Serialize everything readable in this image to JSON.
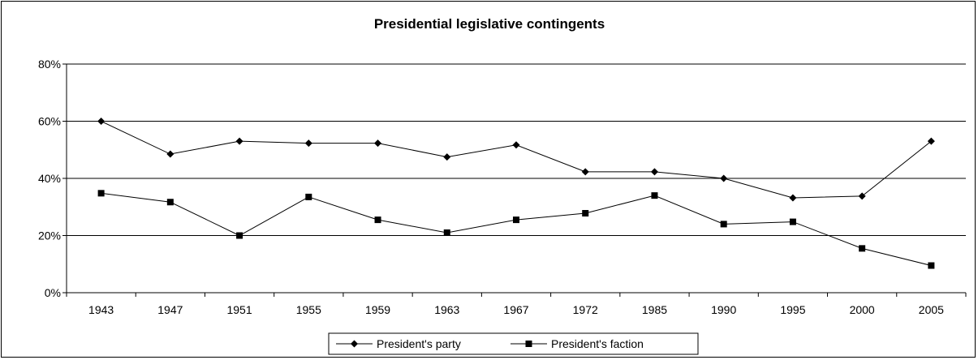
{
  "chart_data": {
    "type": "line",
    "title": "Presidential legislative contingents",
    "xlabel": "",
    "ylabel": "",
    "categories": [
      "1943",
      "1947",
      "1951",
      "1955",
      "1959",
      "1963",
      "1967",
      "1972",
      "1985",
      "1990",
      "1995",
      "2000",
      "2005"
    ],
    "ylim": [
      0,
      80
    ],
    "y_ticks": [
      "0%",
      "20%",
      "40%",
      "60%",
      "80%"
    ],
    "grid": true,
    "legend_position": "bottom",
    "series": [
      {
        "name": "President's party",
        "marker": "diamond",
        "color": "#000000",
        "values": [
          60,
          48.5,
          53,
          52.3,
          52.3,
          47.5,
          51.7,
          42.3,
          42.3,
          40,
          33.2,
          33.8,
          53
        ]
      },
      {
        "name": "President's faction",
        "marker": "square",
        "color": "#000000",
        "values": [
          34.8,
          31.7,
          20,
          33.5,
          25.5,
          21,
          25.5,
          27.8,
          34,
          24,
          24.8,
          15.5,
          9.5
        ]
      }
    ]
  }
}
